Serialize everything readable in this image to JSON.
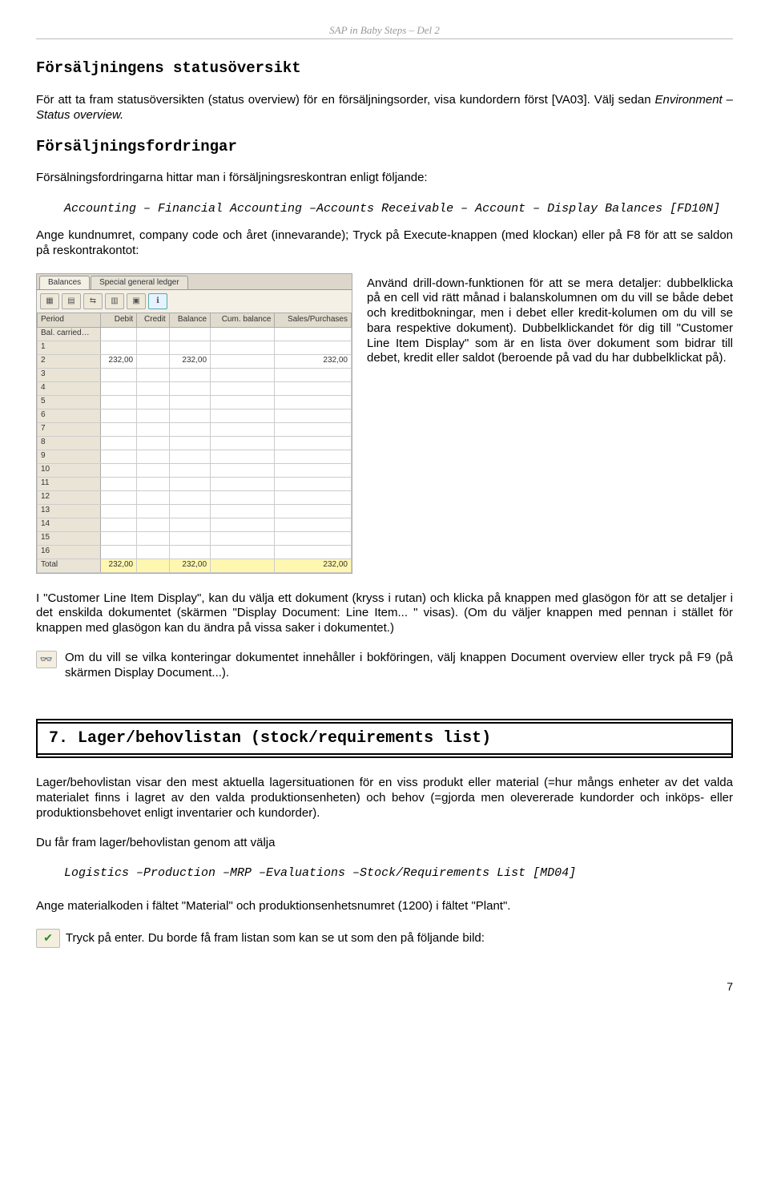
{
  "header": {
    "title": "SAP in Baby Steps – Del 2"
  },
  "section1": {
    "title": "Försäljningens statusöversikt",
    "p1_a": "För att ta fram statusöversikten (status overview) för en försäljningsorder, visa kundordern först [VA03]. Välj sedan ",
    "p1_b": "Environment – Status overview.",
    "sub_title": "Försäljningsfordringar",
    "p2": "Försälningsfordringarna hittar man i försäljningsreskontran enligt följande:",
    "path": "Accounting – Financial Accounting –Accounts Receivable – Account – Display Balances [FD10N]",
    "p3": "Ange kundnumret, company code och året (innevarande); Tryck på Execute-knappen (med klockan) eller på F8 för att se saldon på reskontrakontot:"
  },
  "screenshot": {
    "tabs": [
      "Balances",
      "Special general ledger"
    ],
    "columns": [
      "Period",
      "Debit",
      "Credit",
      "Balance",
      "Cum. balance",
      "Sales/Purchases"
    ],
    "rows": [
      {
        "period": "Bal. carried…"
      },
      {
        "period": "1"
      },
      {
        "period": "2",
        "debit": "232,00",
        "credit": "",
        "balance": "232,00",
        "cum": "",
        "sp": "232,00"
      },
      {
        "period": "3"
      },
      {
        "period": "4"
      },
      {
        "period": "5"
      },
      {
        "period": "6"
      },
      {
        "period": "7"
      },
      {
        "period": "8"
      },
      {
        "period": "9"
      },
      {
        "period": "10"
      },
      {
        "period": "11"
      },
      {
        "period": "12"
      },
      {
        "period": "13"
      },
      {
        "period": "14"
      },
      {
        "period": "15"
      },
      {
        "period": "16"
      }
    ],
    "total": {
      "period": "Total",
      "debit": "232,00",
      "balance": "232,00",
      "sp": "232,00"
    }
  },
  "right_text": "Använd drill-down-funktionen för att se mera detaljer: dubbelklicka på en cell vid rätt månad i balanskolumnen om du vill se både debet och kreditbokningar, men i debet eller kredit-kolumen om du vill se bara respektive dokument). Dubbelklickandet för dig till \"Customer Line Item Display\" som är en lista över dokument som bidrar till debet, kredit eller saldot (beroende på vad du har dubbelklickat på).",
  "below1": "I \"Customer Line Item Display\", kan du välja ett dokument (kryss i rutan) och klicka på knappen med glasögon för att se detaljer i det enskilda dokumentet (skärmen \"Display Document: Line Item... \" visas). (Om du väljer knappen med pennan i stället för knappen med glasögon kan du ändra på vissa saker i dokumentet.)",
  "below2": "Om du vill se vilka konteringar dokumentet innehåller i bokföringen, välj knappen Document overview eller tryck på F9 (på skärmen Display Document...).",
  "section7": {
    "title": "7. Lager/behovlistan (stock/requirements list)",
    "p1": "Lager/behovlistan visar den mest aktuella lagersituationen för en viss produkt eller material (=hur mångs enheter av det valda materialet finns i lagret av den valda produktionsenheten) och behov (=gjorda men olevererade kundorder och inköps- eller produktionsbehovet enligt inventarier och kundorder).",
    "p2": "Du får fram lager/behovlistan genom att välja",
    "path": "Logistics –Production –MRP –Evaluations –Stock/Requirements List [MD04]",
    "p3": "Ange materialkoden i fältet \"Material\" och produktionsenhetsnumret (1200) i fältet \"Plant\".",
    "p4": " Tryck på enter. Du borde få fram listan som kan se ut som den på följande bild:"
  },
  "page": "7"
}
